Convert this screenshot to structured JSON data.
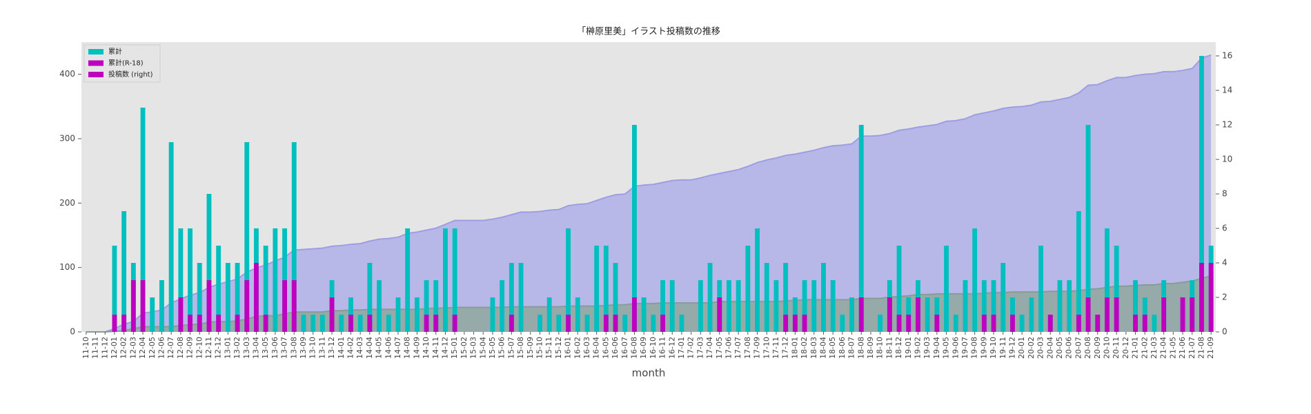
{
  "chart_data": {
    "type": "bar",
    "title": "「榊原里美」イラスト投稿数の推移",
    "x_label": "month",
    "categories": [
      "11-10",
      "11-11",
      "11-12",
      "12-01",
      "12-02",
      "12-03",
      "12-04",
      "12-05",
      "12-06",
      "12-07",
      "12-08",
      "12-09",
      "12-10",
      "12-11",
      "12-12",
      "13-01",
      "13-02",
      "13-03",
      "13-04",
      "13-05",
      "13-06",
      "13-07",
      "13-08",
      "13-09",
      "13-10",
      "13-11",
      "13-12",
      "14-01",
      "14-02",
      "14-03",
      "14-04",
      "14-05",
      "14-06",
      "14-07",
      "14-08",
      "14-09",
      "14-10",
      "14-11",
      "14-12",
      "15-01",
      "15-02",
      "15-03",
      "15-04",
      "15-05",
      "15-06",
      "15-07",
      "15-08",
      "15-09",
      "15-10",
      "15-11",
      "15-12",
      "16-01",
      "16-02",
      "16-03",
      "16-04",
      "16-05",
      "16-06",
      "16-07",
      "16-08",
      "16-09",
      "16-10",
      "16-11",
      "16-12",
      "17-01",
      "17-02",
      "17-03",
      "17-04",
      "17-05",
      "17-06",
      "17-07",
      "17-08",
      "17-09",
      "17-10",
      "17-11",
      "17-12",
      "18-01",
      "18-02",
      "18-03",
      "18-04",
      "18-05",
      "18-06",
      "18-07",
      "18-08",
      "18-09",
      "18-10",
      "18-11",
      "18-12",
      "19-01",
      "19-02",
      "19-03",
      "19-04",
      "19-05",
      "19-06",
      "19-07",
      "19-08",
      "19-09",
      "19-10",
      "19-11",
      "19-12",
      "20-01",
      "20-02",
      "20-03",
      "20-04",
      "20-05",
      "20-06",
      "20-07",
      "20-08",
      "20-09",
      "20-10",
      "20-11",
      "20-12",
      "21-01",
      "21-02",
      "21-03",
      "21-04",
      "21-05",
      "21-06",
      "21-07",
      "21-08",
      "21-09"
    ],
    "ylim": [
      0,
      450
    ],
    "yticks": [
      0,
      100,
      200,
      300,
      400
    ],
    "y2lim": [
      0,
      16.8
    ],
    "y2ticks": [
      0,
      2,
      4,
      6,
      8,
      10,
      12,
      14,
      16
    ],
    "legend": "upper left",
    "series": [
      {
        "name": "累計",
        "type": "area",
        "color": "#00bfbf",
        "area_color": "#b3b3e8",
        "line_color": "#9d9de3",
        "values": [
          0,
          0,
          0,
          5,
          12,
          16,
          29,
          31,
          34,
          45,
          51,
          57,
          61,
          69,
          74,
          78,
          82,
          93,
          99,
          104,
          110,
          116,
          127,
          128,
          129,
          130,
          133,
          134,
          136,
          137,
          141,
          144,
          145,
          147,
          153,
          155,
          158,
          161,
          167,
          173,
          173,
          173,
          173,
          175,
          178,
          182,
          186,
          186,
          187,
          189,
          190,
          196,
          198,
          199,
          204,
          209,
          213,
          214,
          226,
          228,
          229,
          232,
          235,
          236,
          236,
          239,
          243,
          246,
          249,
          252,
          257,
          263,
          267,
          270,
          274,
          276,
          279,
          282,
          286,
          289,
          290,
          292,
          304,
          304,
          305,
          308,
          313,
          315,
          318,
          320,
          322,
          327,
          328,
          331,
          337,
          340,
          343,
          347,
          349,
          350,
          352,
          357,
          358,
          361,
          364,
          371,
          383,
          384,
          390,
          395,
          395,
          398,
          400,
          401,
          404,
          404,
          406,
          409,
          425,
          430
        ]
      },
      {
        "name": "累計(R-18)",
        "type": "area",
        "color": "#bf00bf",
        "area_color": "#93a9a3",
        "line_color": "#889c97",
        "values": [
          0,
          0,
          0,
          1,
          2,
          5,
          8,
          8,
          8,
          8,
          10,
          11,
          12,
          15,
          16,
          16,
          17,
          20,
          24,
          25,
          25,
          28,
          31,
          31,
          31,
          31,
          33,
          33,
          34,
          34,
          35,
          35,
          35,
          35,
          35,
          35,
          36,
          37,
          37,
          38,
          38,
          38,
          38,
          38,
          38,
          39,
          39,
          39,
          39,
          39,
          39,
          40,
          40,
          40,
          40,
          41,
          42,
          42,
          44,
          44,
          44,
          45,
          45,
          45,
          45,
          45,
          45,
          47,
          47,
          47,
          47,
          47,
          47,
          47,
          48,
          49,
          50,
          50,
          50,
          50,
          50,
          50,
          52,
          52,
          52,
          54,
          55,
          56,
          58,
          58,
          59,
          59,
          59,
          59,
          59,
          60,
          61,
          61,
          62,
          62,
          62,
          62,
          63,
          63,
          63,
          64,
          66,
          67,
          69,
          71,
          71,
          72,
          73,
          73,
          75,
          75,
          77,
          79,
          83,
          87
        ]
      },
      {
        "name": "投稿数 (right)",
        "type": "bar",
        "axis": "y2",
        "color": "#bf00bf",
        "bar_color": "#00bfbf",
        "r18_color": "#bf00bf",
        "values": [
          0,
          0,
          0,
          5,
          7,
          4,
          13,
          2,
          3,
          11,
          6,
          6,
          4,
          8,
          5,
          4,
          4,
          11,
          6,
          5,
          6,
          6,
          11,
          1,
          1,
          1,
          3,
          1,
          2,
          1,
          4,
          3,
          1,
          2,
          6,
          2,
          3,
          3,
          6,
          6,
          0,
          0,
          0,
          2,
          3,
          4,
          4,
          0,
          1,
          2,
          1,
          6,
          2,
          1,
          5,
          5,
          4,
          1,
          12,
          2,
          1,
          3,
          3,
          1,
          0,
          3,
          4,
          3,
          3,
          3,
          5,
          6,
          4,
          3,
          4,
          2,
          3,
          3,
          4,
          3,
          1,
          2,
          12,
          0,
          1,
          3,
          5,
          2,
          3,
          2,
          2,
          5,
          1,
          3,
          6,
          3,
          3,
          4,
          2,
          1,
          2,
          5,
          1,
          3,
          3,
          7,
          12,
          1,
          6,
          5,
          0,
          3,
          2,
          1,
          3,
          0,
          2,
          3,
          16,
          5
        ],
        "r18_values": [
          0,
          0,
          0,
          1,
          1,
          3,
          3,
          0,
          0,
          0,
          2,
          1,
          1,
          3,
          1,
          0,
          1,
          3,
          4,
          1,
          0,
          3,
          3,
          0,
          0,
          0,
          2,
          0,
          1,
          0,
          1,
          0,
          0,
          0,
          0,
          0,
          1,
          1,
          0,
          1,
          0,
          0,
          0,
          0,
          0,
          1,
          0,
          0,
          0,
          0,
          0,
          1,
          0,
          0,
          0,
          1,
          1,
          0,
          2,
          0,
          0,
          1,
          0,
          0,
          0,
          0,
          0,
          2,
          0,
          0,
          0,
          0,
          0,
          0,
          1,
          1,
          1,
          0,
          0,
          0,
          0,
          0,
          2,
          0,
          0,
          2,
          1,
          1,
          2,
          0,
          1,
          0,
          0,
          0,
          0,
          1,
          1,
          0,
          1,
          0,
          0,
          0,
          1,
          0,
          0,
          1,
          2,
          1,
          2,
          2,
          0,
          1,
          1,
          0,
          2,
          0,
          2,
          2,
          4,
          4
        ]
      }
    ]
  }
}
